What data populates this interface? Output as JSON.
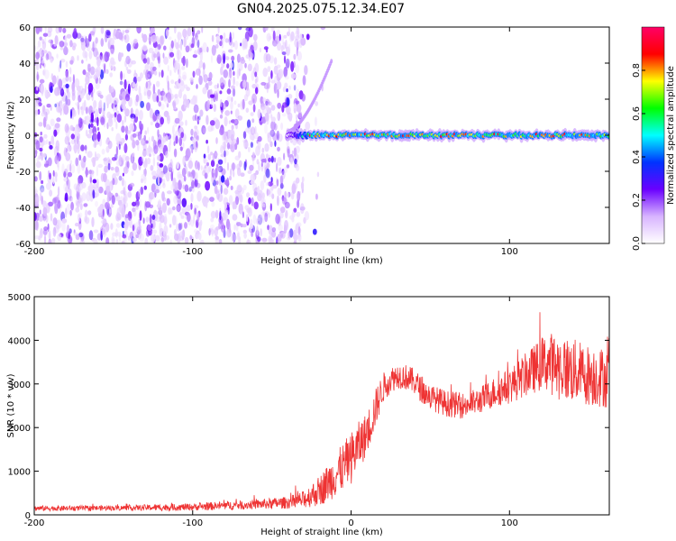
{
  "title": "GN04.2025.075.12.34.E07",
  "chart_data": [
    {
      "type": "heatmap",
      "xlabel": "Height of straight line (km)",
      "ylabel": "Frequency (Hz)",
      "xlim": [
        -200,
        163
      ],
      "ylim": [
        -60,
        60
      ],
      "xticks": [
        -200,
        -100,
        0,
        100
      ],
      "xtick_labels": [
        "-200",
        "-100",
        "0",
        "100"
      ],
      "yticks": [
        -60,
        -40,
        -20,
        0,
        20,
        40,
        60
      ],
      "ytick_labels": [
        "-60",
        "-40",
        "-20",
        "0",
        "20",
        "40",
        "60"
      ],
      "colorbar": {
        "label": "Normalized spectral amplitude",
        "range": [
          0,
          1
        ],
        "ticks": [
          0.0,
          0.2,
          0.4,
          0.6,
          0.8
        ],
        "tick_labels": [
          "0.0",
          "0.2",
          "0.4",
          "0.6",
          "0.8"
        ],
        "colormap": [
          "#ffffff",
          "#d8b4ff",
          "#6a00ff",
          "#0033ff",
          "#00ffff",
          "#00ff00",
          "#ffff00",
          "#ff0000",
          "#ff0066"
        ]
      },
      "features": [
        {
          "name": "noise",
          "x_range": [
            -200,
            -30
          ],
          "y_range": [
            -60,
            60
          ],
          "amplitude": 0.08
        },
        {
          "name": "tone",
          "x_range": [
            -40,
            163
          ],
          "y_center": 0,
          "y_halfwidth": 3,
          "amplitude": 0.9
        }
      ]
    },
    {
      "type": "line",
      "xlabel": "Height of straight line (km)",
      "ylabel": "SNR (10 * v/v)",
      "xlim": [
        -200,
        163
      ],
      "ylim": [
        0,
        5000
      ],
      "xticks": [
        -200,
        -100,
        0,
        100
      ],
      "xtick_labels": [
        "-200",
        "-100",
        "0",
        "100"
      ],
      "yticks": [
        0,
        1000,
        2000,
        3000,
        4000,
        5000
      ],
      "ytick_labels": [
        "0",
        "1000",
        "2000",
        "3000",
        "4000",
        "5000"
      ],
      "color": "#ee3333",
      "x": [
        -200,
        -180,
        -160,
        -140,
        -120,
        -100,
        -80,
        -60,
        -40,
        -30,
        -20,
        -10,
        0,
        5,
        10,
        15,
        20,
        25,
        30,
        35,
        40,
        45,
        50,
        60,
        70,
        80,
        90,
        100,
        110,
        120,
        125,
        130,
        140,
        150,
        160,
        163
      ],
      "y": [
        150,
        150,
        155,
        160,
        170,
        180,
        210,
        240,
        280,
        350,
        550,
        900,
        1300,
        1600,
        1850,
        2400,
        2900,
        3100,
        3200,
        3150,
        3050,
        2850,
        2700,
        2550,
        2500,
        2600,
        2800,
        2950,
        3200,
        3450,
        3500,
        3400,
        3300,
        3200,
        3150,
        3100
      ],
      "noise_amplitude": [
        60,
        60,
        60,
        60,
        80,
        80,
        100,
        110,
        140,
        200,
        350,
        500,
        600,
        550,
        500,
        450,
        350,
        300,
        300,
        300,
        300,
        300,
        300,
        300,
        300,
        300,
        350,
        400,
        500,
        600,
        700,
        750,
        750,
        700,
        700,
        700
      ]
    }
  ]
}
